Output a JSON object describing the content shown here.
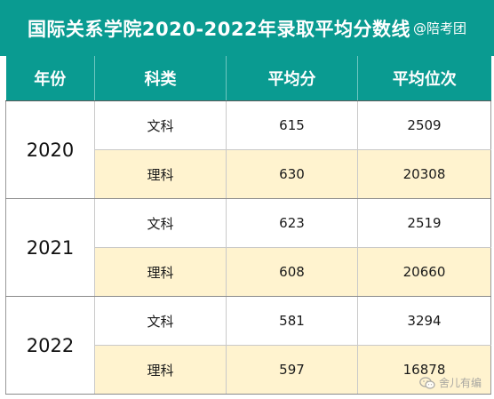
{
  "title": {
    "main": "国际关系学院2020-2022年录取平均分数线",
    "tag": "@陪考团"
  },
  "table": {
    "headers": [
      "年份",
      "科类",
      "平均分",
      "平均位次"
    ],
    "groups": [
      {
        "year": "2020",
        "rows": [
          {
            "subject": "文科",
            "avg_score": "615",
            "avg_rank": "2509"
          },
          {
            "subject": "理科",
            "avg_score": "630",
            "avg_rank": "20308"
          }
        ]
      },
      {
        "year": "2021",
        "rows": [
          {
            "subject": "文科",
            "avg_score": "623",
            "avg_rank": "2519"
          },
          {
            "subject": "理科",
            "avg_score": "608",
            "avg_rank": "20660"
          }
        ]
      },
      {
        "year": "2022",
        "rows": [
          {
            "subject": "文科",
            "avg_score": "581",
            "avg_rank": "3294"
          },
          {
            "subject": "理科",
            "avg_score": "597",
            "avg_rank": "16878"
          }
        ]
      }
    ]
  },
  "watermark": {
    "text": "舍儿有编",
    "icon": "wechat-icon"
  },
  "colors": {
    "header_bg": "#0a9b91",
    "alt_row_bg": "#fff3cf"
  }
}
